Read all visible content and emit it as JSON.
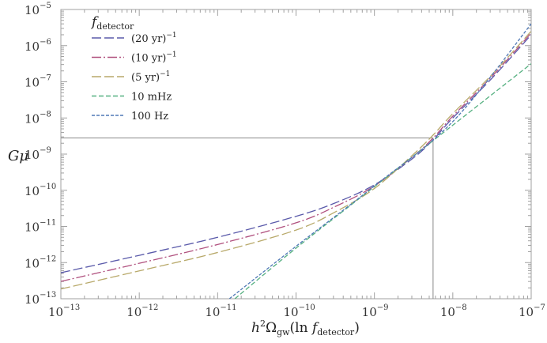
{
  "chart_data": {
    "type": "line",
    "title": "",
    "xlabel": "h^2 Ω_gw(ln f_detector)",
    "ylabel": "Gμ",
    "xscale": "log",
    "yscale": "log",
    "xlim": [
      1e-13,
      1e-07
    ],
    "ylim": [
      1e-13,
      1e-05
    ],
    "x_ticks": [
      {
        "base": "10",
        "exp": "−13"
      },
      {
        "base": "10",
        "exp": "−12"
      },
      {
        "base": "10",
        "exp": "−11"
      },
      {
        "base": "10",
        "exp": "−10"
      },
      {
        "base": "10",
        "exp": "−9"
      },
      {
        "base": "10",
        "exp": "−8"
      },
      {
        "base": "10",
        "exp": "−7"
      }
    ],
    "y_ticks": [
      {
        "base": "10",
        "exp": "−5"
      },
      {
        "base": "10",
        "exp": "−6"
      },
      {
        "base": "10",
        "exp": "−7"
      },
      {
        "base": "10",
        "exp": "−8"
      },
      {
        "base": "10",
        "exp": "−9"
      },
      {
        "base": "10",
        "exp": "−10"
      },
      {
        "base": "10",
        "exp": "−11"
      },
      {
        "base": "10",
        "exp": "−12"
      },
      {
        "base": "10",
        "exp": "−13"
      }
    ],
    "grid": false,
    "legend_position": "upper-left",
    "legend_title": "f_detector",
    "series": [
      {
        "name": "(20 yr)^-1",
        "color": "#5a5aaa",
        "dash": "12,4",
        "x_log10": [
          -13,
          -12,
          -11,
          -10,
          -9.5,
          -9,
          -8.5,
          -8.25,
          -8,
          -7.5,
          -7
        ],
        "y_log10": [
          -12.28,
          -11.8,
          -11.3,
          -10.72,
          -10.35,
          -9.85,
          -9.1,
          -8.6,
          -8.0,
          -6.9,
          -5.7
        ]
      },
      {
        "name": "(10 yr)^-1",
        "color": "#b0507e",
        "dash": "12,3,2,3",
        "x_log10": [
          -13,
          -12,
          -11,
          -10,
          -9.5,
          -9,
          -8.5,
          -8.25,
          -8,
          -7.5,
          -7
        ],
        "y_log10": [
          -12.52,
          -12.02,
          -11.5,
          -10.9,
          -10.45,
          -9.88,
          -9.05,
          -8.55,
          -7.95,
          -6.85,
          -5.65
        ]
      },
      {
        "name": "(5 yr)^-1",
        "color": "#b8a96a",
        "dash": "12,4",
        "x_log10": [
          -13,
          -12,
          -11,
          -10,
          -9.5,
          -9,
          -8.5,
          -8.25,
          -8,
          -7.5,
          -7
        ],
        "y_log10": [
          -12.73,
          -12.23,
          -11.72,
          -11.1,
          -10.6,
          -9.95,
          -9.0,
          -8.47,
          -7.88,
          -6.8,
          -5.6
        ]
      },
      {
        "name": "10 mHz",
        "color": "#55b080",
        "dash": "6,3",
        "x_log10": [
          -10.78,
          -10,
          -9,
          -8,
          -7
        ],
        "y_log10": [
          -13.0,
          -11.6,
          -9.9,
          -8.2,
          -6.5
        ]
      },
      {
        "name": "100 Hz",
        "color": "#4f78b5",
        "dash": "4,2",
        "x_log10": [
          -10.85,
          -10,
          -9,
          -8,
          -7
        ],
        "y_log10": [
          -13.0,
          -11.55,
          -9.88,
          -8.1,
          -5.4
        ]
      }
    ],
    "reference_lines": {
      "horizontal_y": 2.8e-09,
      "vertical_x": 5.6e-09,
      "color": "#999999"
    }
  },
  "axis": {
    "ylabel": "Gμ",
    "xlabel_main": "h",
    "xlabel_sup": "2",
    "xlabel_omega": "Ω",
    "xlabel_omega_sub": "gw",
    "xlabel_paren_open": "(ln ",
    "xlabel_f": "f",
    "xlabel_f_sub": "detector",
    "xlabel_paren_close": ")"
  },
  "legend": {
    "title_f": "f",
    "title_sub": "detector",
    "items": [
      {
        "label": "(20 yr)",
        "sup": "−1",
        "color": "#5a5aaa",
        "dash": "12,4"
      },
      {
        "label": "(10 yr)",
        "sup": "−1",
        "color": "#b0507e",
        "dash": "12,3,2,3"
      },
      {
        "label": "(5 yr)",
        "sup": "−1",
        "color": "#b8a96a",
        "dash": "12,4"
      },
      {
        "label": "10 mHz",
        "sup": "",
        "color": "#55b080",
        "dash": "6,3"
      },
      {
        "label": "100 Hz",
        "sup": "",
        "color": "#4f78b5",
        "dash": "4,2"
      }
    ]
  },
  "layout": {
    "frame_color": "#a0a0a0",
    "ref_line_color": "#999999"
  }
}
